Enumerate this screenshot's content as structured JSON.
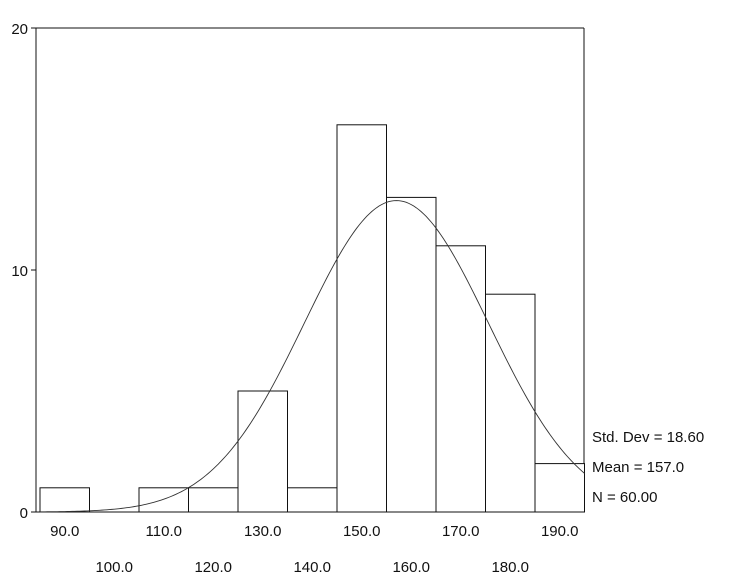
{
  "chart_data": {
    "type": "bar",
    "subtype": "histogram",
    "categories": [
      "90.0",
      "100.0",
      "110.0",
      "120.0",
      "130.0",
      "140.0",
      "150.0",
      "160.0",
      "170.0",
      "180.0",
      "190.0"
    ],
    "values": [
      1,
      0,
      1,
      1,
      5,
      1,
      16,
      13,
      11,
      9,
      2
    ],
    "bin_width": 10,
    "ylim": [
      0,
      20
    ],
    "yticks": [
      "0",
      "10",
      "20"
    ],
    "xticks_upper": [
      "90.0",
      "110.0",
      "130.0",
      "150.0",
      "170.0",
      "190.0"
    ],
    "xticks_lower": [
      "100.0",
      "120.0",
      "140.0",
      "160.0",
      "180.0"
    ],
    "normal_curve": {
      "shown": true,
      "mean": 157.0,
      "std_dev": 18.6,
      "n": 60
    },
    "grid": false,
    "stats": {
      "std_dev_label": "Std. Dev = 18.60",
      "mean_label": "Mean = 157.0",
      "n_label": "N = 60.00"
    },
    "colors": {
      "bar_fill": "#ffffff",
      "bar_stroke": "#111111",
      "curve": "#333333"
    }
  }
}
